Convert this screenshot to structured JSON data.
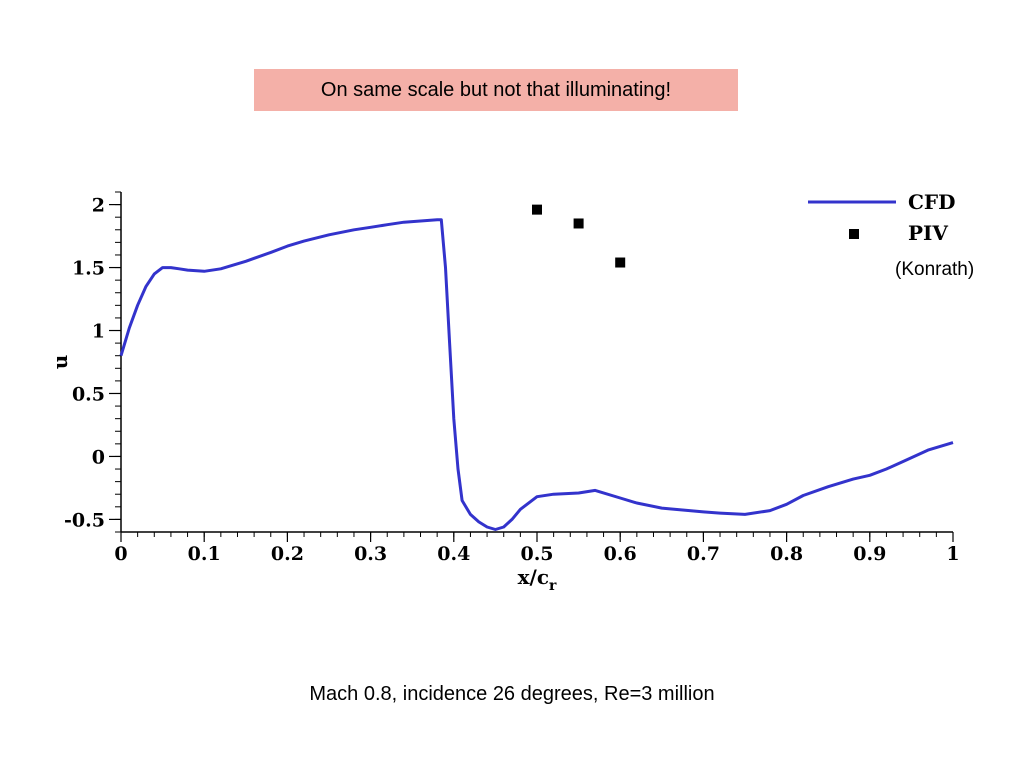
{
  "banner": {
    "text": "On same scale but not that illuminating!"
  },
  "footer": {
    "text": "Mach 0.8, incidence 26 degrees, Re=3 million"
  },
  "colors": {
    "banner_bg": "#f4b0a8",
    "cfd_line": "#3333cc",
    "piv_marker": "#000000"
  },
  "chart_data": {
    "type": "line",
    "title": "",
    "xlabel": "x/c",
    "xlabel_sub": "r",
    "ylabel": "u",
    "xlim": [
      0,
      1
    ],
    "ylim": [
      -0.6,
      2.1
    ],
    "xticks": [
      "0",
      "0.1",
      "0.2",
      "0.3",
      "0.4",
      "0.5",
      "0.6",
      "0.7",
      "0.8",
      "0.9",
      "1"
    ],
    "yticks": [
      "-0.5",
      "0",
      "0.5",
      "1",
      "1.5",
      "2"
    ],
    "legend_position": "top-right",
    "legend_note": "(Konrath)",
    "series": [
      {
        "name": "CFD",
        "kind": "line",
        "x": [
          0,
          0.01,
          0.02,
          0.03,
          0.04,
          0.05,
          0.06,
          0.07,
          0.08,
          0.1,
          0.12,
          0.15,
          0.18,
          0.2,
          0.22,
          0.25,
          0.28,
          0.3,
          0.32,
          0.34,
          0.36,
          0.38,
          0.385,
          0.39,
          0.395,
          0.4,
          0.405,
          0.41,
          0.42,
          0.43,
          0.44,
          0.45,
          0.46,
          0.47,
          0.48,
          0.5,
          0.52,
          0.55,
          0.57,
          0.6,
          0.62,
          0.65,
          0.7,
          0.72,
          0.75,
          0.78,
          0.8,
          0.82,
          0.85,
          0.88,
          0.9,
          0.92,
          0.94,
          0.97,
          1.0
        ],
        "y": [
          0.8,
          1.02,
          1.2,
          1.35,
          1.45,
          1.5,
          1.5,
          1.49,
          1.48,
          1.47,
          1.49,
          1.55,
          1.62,
          1.67,
          1.71,
          1.76,
          1.8,
          1.82,
          1.84,
          1.86,
          1.87,
          1.88,
          1.88,
          1.5,
          0.9,
          0.3,
          -0.1,
          -0.35,
          -0.46,
          -0.52,
          -0.56,
          -0.58,
          -0.56,
          -0.5,
          -0.42,
          -0.32,
          -0.3,
          -0.29,
          -0.27,
          -0.33,
          -0.37,
          -0.41,
          -0.44,
          -0.45,
          -0.46,
          -0.43,
          -0.38,
          -0.31,
          -0.24,
          -0.18,
          -0.15,
          -0.1,
          -0.04,
          0.05,
          0.11
        ]
      },
      {
        "name": "PIV",
        "kind": "scatter",
        "x": [
          0.5,
          0.55,
          0.6
        ],
        "y": [
          1.96,
          1.85,
          1.54
        ]
      }
    ]
  }
}
